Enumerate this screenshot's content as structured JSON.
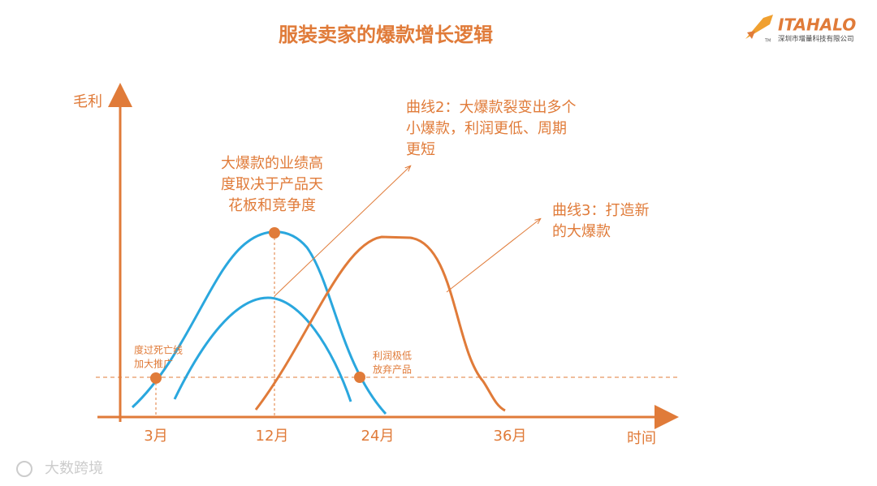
{
  "header": {
    "title": "服装卖家的爆款增长逻辑",
    "brand": "ITAHALO",
    "trademark": "TM",
    "company": "深圳市增量科技有限公司"
  },
  "axes": {
    "y_label": "毛利",
    "x_label": "时间",
    "x_ticks": [
      "3月",
      "12月",
      "24月",
      "36月"
    ]
  },
  "annotations": {
    "peak": [
      "大爆款的业绩高",
      "度取决于产品天",
      "花板和竞争度"
    ],
    "curve2": [
      "曲线2：大爆款裂变出多个",
      "小爆款，利润更低、周期",
      "更短"
    ],
    "curve3": [
      "曲线3：打造新",
      "的大爆款"
    ],
    "death_line": [
      "度过死亡线",
      "加大推广"
    ],
    "abandon": [
      "利润极低",
      "放弃产品"
    ]
  },
  "watermark": "大数跨境"
}
